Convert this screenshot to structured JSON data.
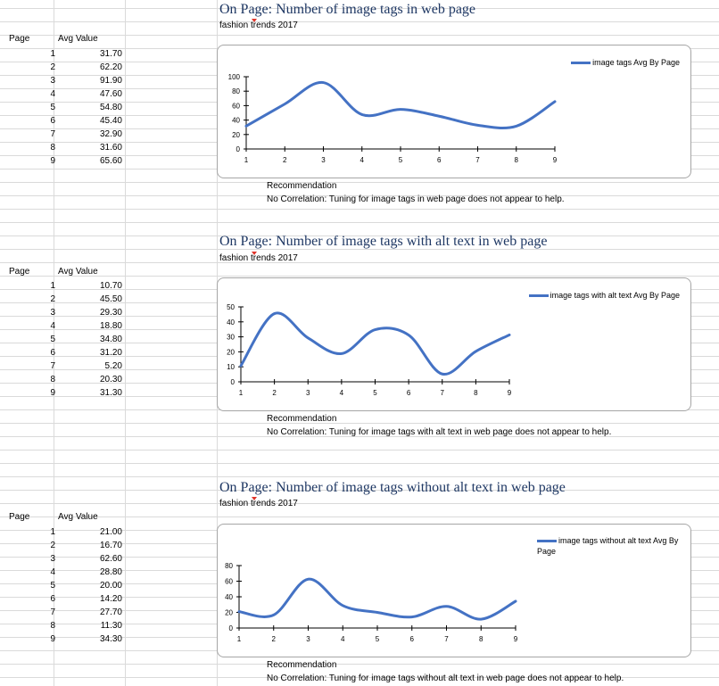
{
  "sections": [
    {
      "title": "On Page: Number of image tags in web page",
      "subtitle": "fashion trends 2017",
      "table": {
        "col_page": "Page",
        "col_value": "Avg Value",
        "rows": [
          {
            "page": "1",
            "value": "31.70"
          },
          {
            "page": "2",
            "value": "62.20"
          },
          {
            "page": "3",
            "value": "91.90"
          },
          {
            "page": "4",
            "value": "47.60"
          },
          {
            "page": "5",
            "value": "54.80"
          },
          {
            "page": "6",
            "value": "45.40"
          },
          {
            "page": "7",
            "value": "32.90"
          },
          {
            "page": "8",
            "value": "31.60"
          },
          {
            "page": "9",
            "value": "65.60"
          }
        ]
      },
      "legend": "image tags Avg By Page",
      "recommendation_label": "Recommendation",
      "recommendation_text": "No Correlation: Tuning for image tags in web page does not appear to help."
    },
    {
      "title": "On Page: Number of image tags with alt text in web page",
      "subtitle": "fashion trends 2017",
      "table": {
        "col_page": "Page",
        "col_value": "Avg Value",
        "rows": [
          {
            "page": "1",
            "value": "10.70"
          },
          {
            "page": "2",
            "value": "45.50"
          },
          {
            "page": "3",
            "value": "29.30"
          },
          {
            "page": "4",
            "value": "18.80"
          },
          {
            "page": "5",
            "value": "34.80"
          },
          {
            "page": "6",
            "value": "31.20"
          },
          {
            "page": "7",
            "value": "5.20"
          },
          {
            "page": "8",
            "value": "20.30"
          },
          {
            "page": "9",
            "value": "31.30"
          }
        ]
      },
      "legend": "image tags with alt text Avg By Page",
      "recommendation_label": "Recommendation",
      "recommendation_text": "No Correlation: Tuning for image tags with alt text in web page does not appear to help."
    },
    {
      "title": "On Page: Number of image tags without alt text in web page",
      "subtitle": "fashion trends 2017",
      "table": {
        "col_page": "Page",
        "col_value": "Avg Value",
        "rows": [
          {
            "page": "1",
            "value": "21.00"
          },
          {
            "page": "2",
            "value": "16.70"
          },
          {
            "page": "3",
            "value": "62.60"
          },
          {
            "page": "4",
            "value": "28.80"
          },
          {
            "page": "5",
            "value": "20.00"
          },
          {
            "page": "6",
            "value": "14.20"
          },
          {
            "page": "7",
            "value": "27.70"
          },
          {
            "page": "8",
            "value": "11.30"
          },
          {
            "page": "9",
            "value": "34.30"
          }
        ]
      },
      "legend": "image tags without alt text Avg By Page",
      "recommendation_label": "Recommendation",
      "recommendation_text": "No Correlation: Tuning for image tags without alt text in web page does not appear to help."
    }
  ],
  "chart_data": [
    {
      "type": "line",
      "x": [
        1,
        2,
        3,
        4,
        5,
        6,
        7,
        8,
        9
      ],
      "series": [
        {
          "name": "image tags Avg By Page",
          "values": [
            31.7,
            62.2,
            91.9,
            47.6,
            54.8,
            45.4,
            32.9,
            31.6,
            65.6
          ]
        }
      ],
      "ylim": [
        0,
        100
      ],
      "yticks": [
        0,
        20,
        40,
        60,
        80,
        100
      ],
      "grid": false,
      "smooth": true,
      "legend_position": "top-right",
      "color": "#4472c4"
    },
    {
      "type": "line",
      "x": [
        1,
        2,
        3,
        4,
        5,
        6,
        7,
        8,
        9
      ],
      "series": [
        {
          "name": "image tags with alt text Avg By Page",
          "values": [
            10.7,
            45.5,
            29.3,
            18.8,
            34.8,
            31.2,
            5.2,
            20.3,
            31.3
          ]
        }
      ],
      "ylim": [
        0,
        50
      ],
      "yticks": [
        0,
        10,
        20,
        30,
        40,
        50
      ],
      "grid": false,
      "smooth": true,
      "legend_position": "top-right",
      "color": "#4472c4"
    },
    {
      "type": "line",
      "x": [
        1,
        2,
        3,
        4,
        5,
        6,
        7,
        8,
        9
      ],
      "series": [
        {
          "name": "image tags without alt text Avg By Page",
          "values": [
            21.0,
            16.7,
            62.6,
            28.8,
            20.0,
            14.2,
            27.7,
            11.3,
            34.3
          ]
        }
      ],
      "ylim": [
        0,
        80
      ],
      "yticks": [
        0,
        20,
        40,
        60,
        80
      ],
      "grid": false,
      "smooth": true,
      "legend_position": "top-right",
      "color": "#4472c4"
    }
  ]
}
